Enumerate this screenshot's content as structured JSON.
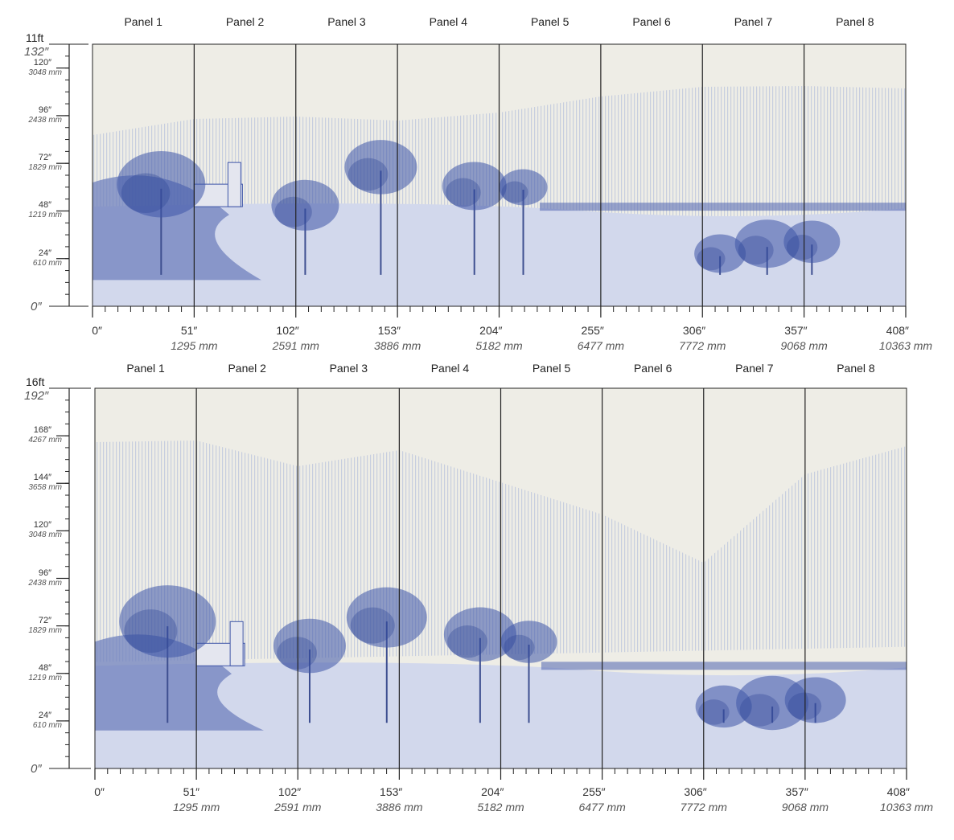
{
  "colors": {
    "background": "#eeede6",
    "ink": "#3e55a8",
    "ink_light": "#a8b4d8",
    "rule": "#222222"
  },
  "diagrams": [
    {
      "height_ft_label": "11ft",
      "height_in_label": "132″",
      "panels": [
        "Panel 1",
        "Panel 2",
        "Panel 3",
        "Panel 4",
        "Panel 5",
        "Panel 6",
        "Panel 7",
        "Panel 8"
      ],
      "height_inches": 132,
      "width_inches": 408,
      "vertical_marks": [
        {
          "in": "120″",
          "mm": "3048 mm",
          "value": 120
        },
        {
          "in": "96″",
          "mm": "2438 mm",
          "value": 96
        },
        {
          "in": "72″",
          "mm": "1829 mm",
          "value": 72
        },
        {
          "in": "48″",
          "mm": "1219 mm",
          "value": 48
        },
        {
          "in": "24″",
          "mm": "610 mm",
          "value": 24
        }
      ],
      "zero_label": "0″",
      "horizontal_marks": [
        {
          "in": "0″",
          "mm": "",
          "value": 0
        },
        {
          "in": "51″",
          "mm": "1295 mm",
          "value": 51
        },
        {
          "in": "102″",
          "mm": "2591 mm",
          "value": 102
        },
        {
          "in": "153″",
          "mm": "3886 mm",
          "value": 153
        },
        {
          "in": "204″",
          "mm": "5182 mm",
          "value": 204
        },
        {
          "in": "255″",
          "mm": "6477 mm",
          "value": 255
        },
        {
          "in": "306″",
          "mm": "7772 mm",
          "value": 306
        },
        {
          "in": "357″",
          "mm": "9068 mm",
          "value": 357
        },
        {
          "in": "408″",
          "mm": "10363 mm",
          "value": 408
        }
      ]
    },
    {
      "height_ft_label": "16ft",
      "height_in_label": "192″",
      "panels": [
        "Panel 1",
        "Panel 2",
        "Panel 3",
        "Panel 4",
        "Panel 5",
        "Panel 6",
        "Panel 7",
        "Panel 8"
      ],
      "height_inches": 192,
      "width_inches": 408,
      "vertical_marks": [
        {
          "in": "168″",
          "mm": "4267 mm",
          "value": 168
        },
        {
          "in": "144″",
          "mm": "3658 mm",
          "value": 144
        },
        {
          "in": "120″",
          "mm": "3048 mm",
          "value": 120
        },
        {
          "in": "96″",
          "mm": "2438 mm",
          "value": 96
        },
        {
          "in": "72″",
          "mm": "1829 mm",
          "value": 72
        },
        {
          "in": "48″",
          "mm": "1219 mm",
          "value": 48
        },
        {
          "in": "24″",
          "mm": "610 mm",
          "value": 24
        }
      ],
      "zero_label": "0″",
      "horizontal_marks": [
        {
          "in": "0″",
          "mm": "",
          "value": 0
        },
        {
          "in": "51″",
          "mm": "1295 mm",
          "value": 51
        },
        {
          "in": "102″",
          "mm": "2591 mm",
          "value": 102
        },
        {
          "in": "153″",
          "mm": "3886 mm",
          "value": 153
        },
        {
          "in": "204″",
          "mm": "5182 mm",
          "value": 204
        },
        {
          "in": "255″",
          "mm": "6477 mm",
          "value": 255
        },
        {
          "in": "306″",
          "mm": "7772 mm",
          "value": 306
        },
        {
          "in": "357″",
          "mm": "9068 mm",
          "value": 357
        },
        {
          "in": "408″",
          "mm": "10363 mm",
          "value": 408
        }
      ]
    }
  ]
}
